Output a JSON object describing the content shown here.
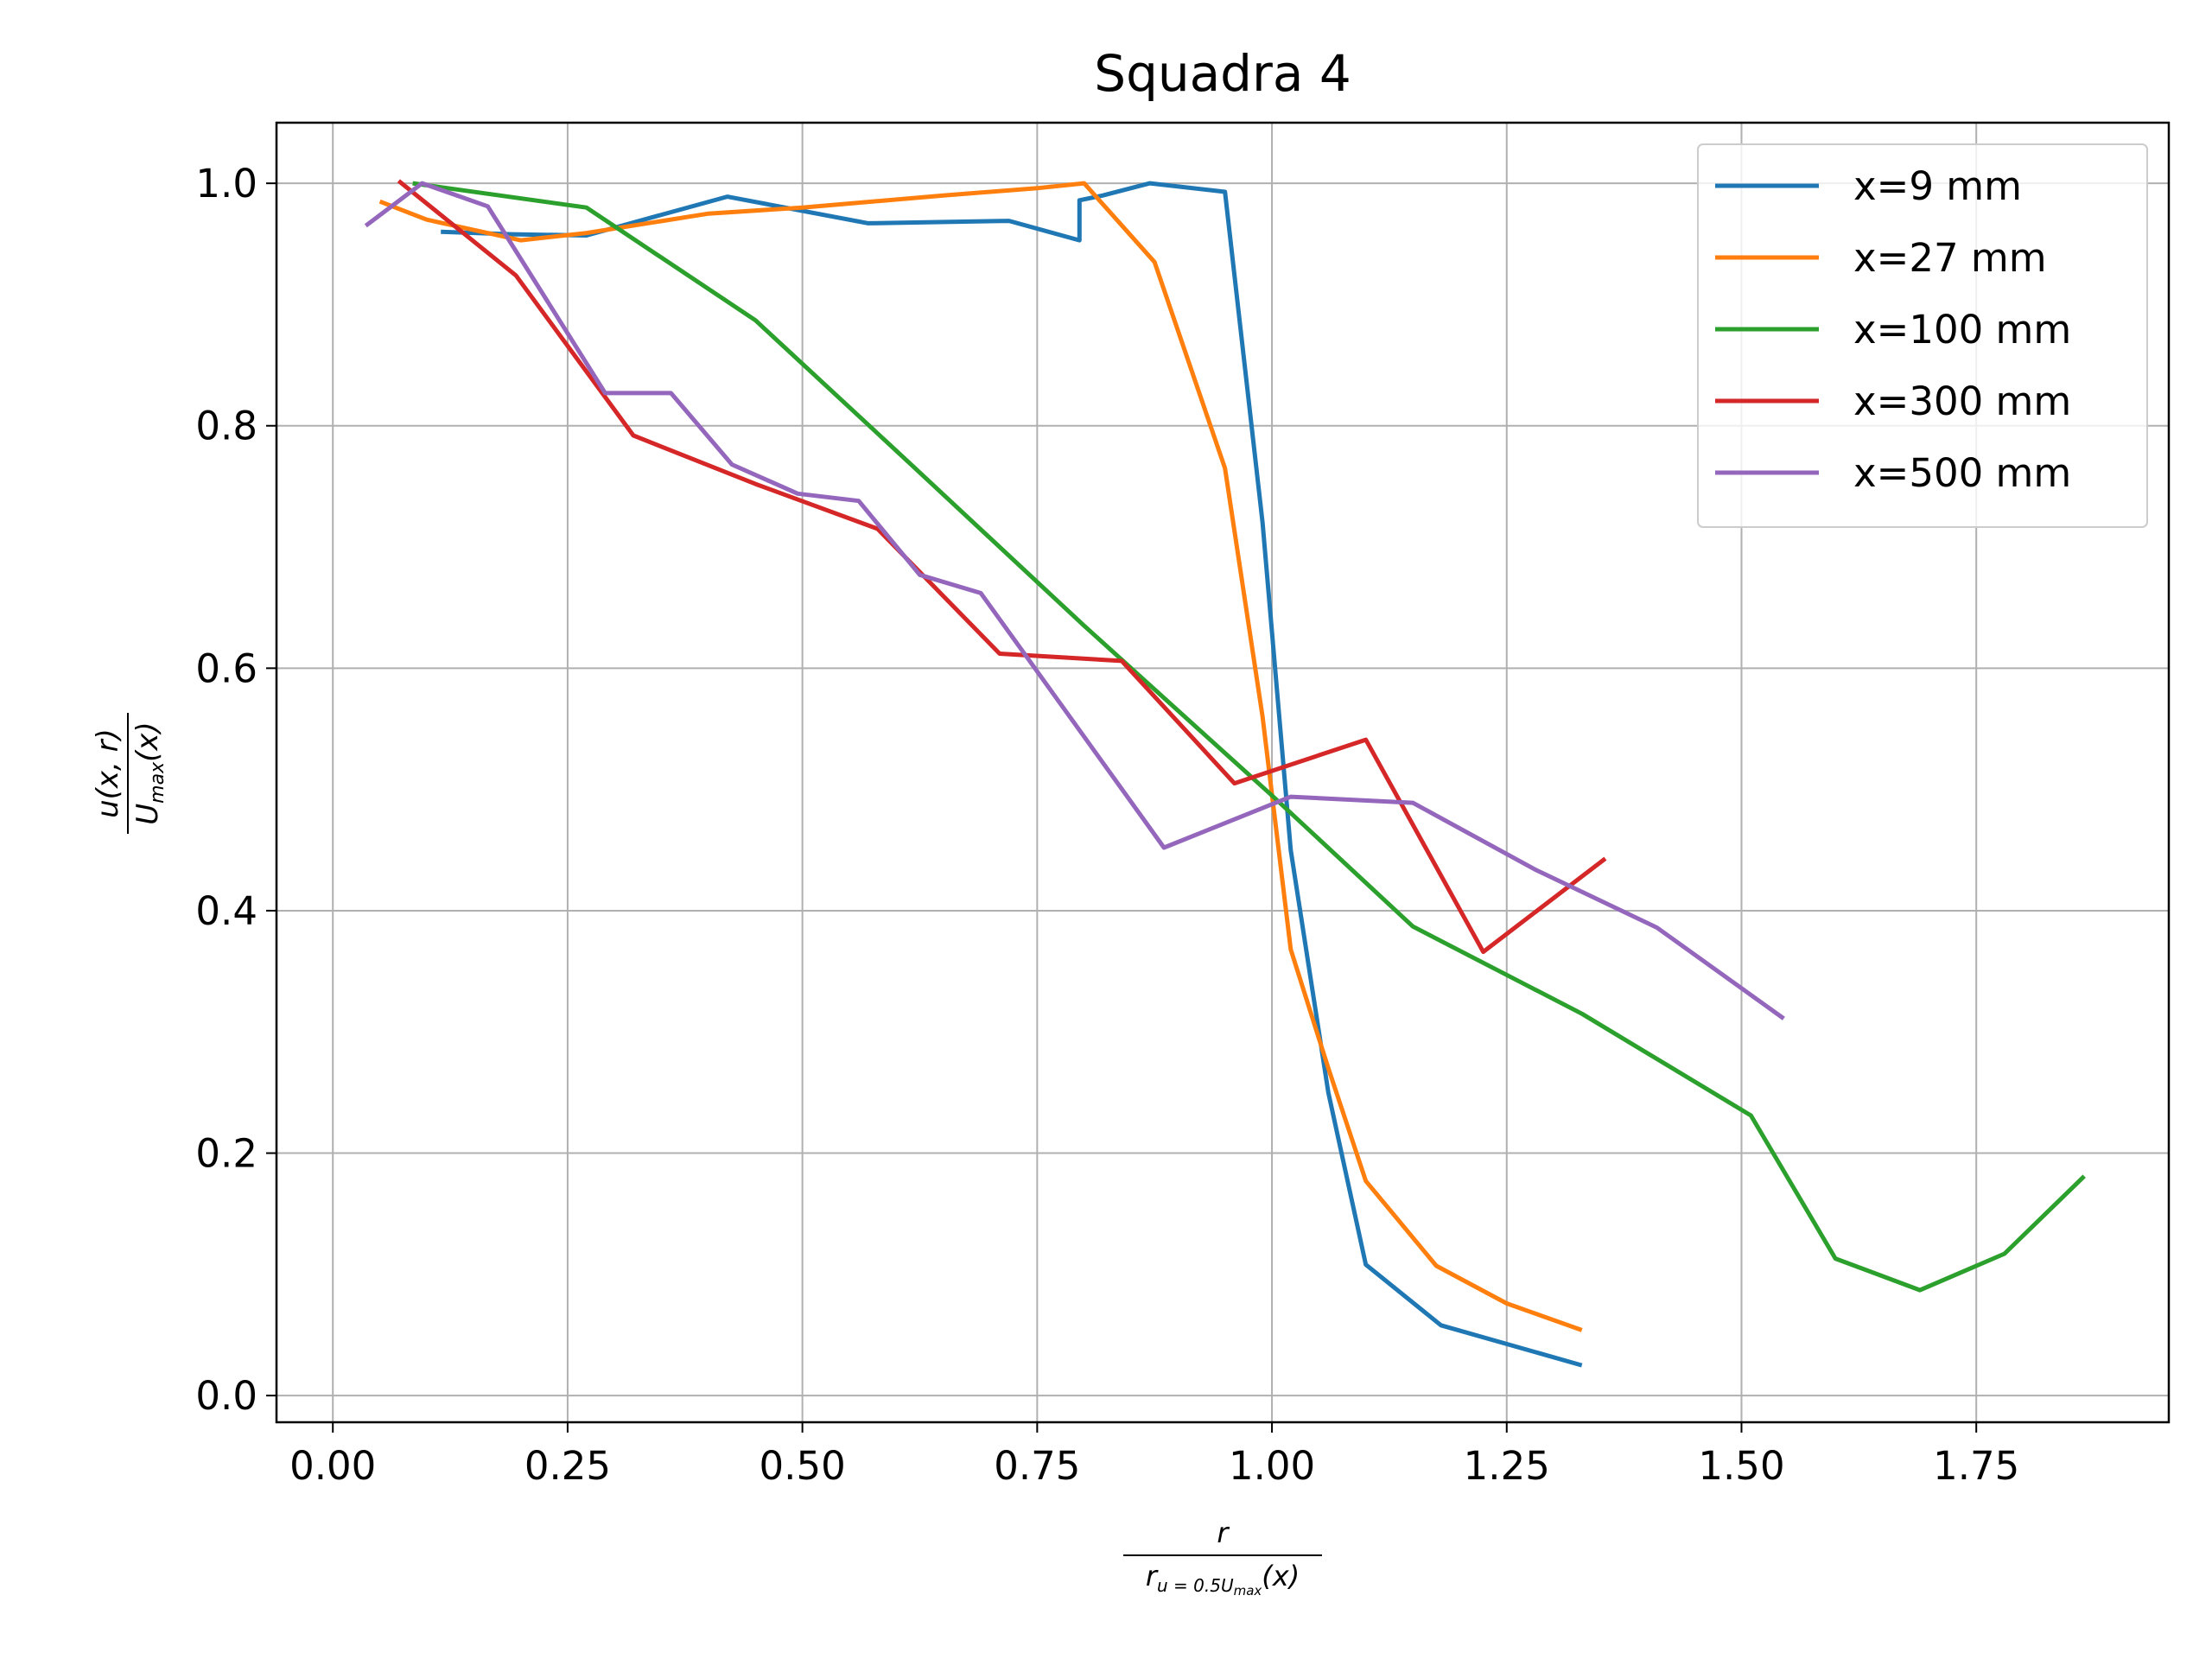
{
  "chart_data": {
    "type": "line",
    "title": "Squadra 4",
    "xlabel": {
      "numerator": "r",
      "denominator_main": "r",
      "denominator_sub": "u = 0.5U",
      "denominator_subsub": "max",
      "denominator_tail": "(x)"
    },
    "ylabel": {
      "numerator": "u(x, r)",
      "denominator_main": "U",
      "denominator_sub": "max",
      "denominator_tail": "(x)"
    },
    "xlim": [
      -0.06,
      1.955
    ],
    "ylim": [
      -0.022,
      1.05
    ],
    "xticks": [
      0.0,
      0.25,
      0.5,
      0.75,
      1.0,
      1.25,
      1.5,
      1.75
    ],
    "xtick_labels": [
      "0.00",
      "0.25",
      "0.50",
      "0.75",
      "1.00",
      "1.25",
      "1.50",
      "1.75"
    ],
    "yticks": [
      0.0,
      0.2,
      0.4,
      0.6,
      0.8,
      1.0
    ],
    "ytick_labels": [
      "0.0",
      "0.2",
      "0.4",
      "0.6",
      "0.8",
      "1.0"
    ],
    "grid": true,
    "legend_position": "top-right",
    "series": [
      {
        "name": "x=9 mm",
        "color": "#1f77b4",
        "x": [
          0.115,
          0.19,
          0.27,
          0.42,
          0.57,
          0.72,
          0.795,
          0.795,
          0.82,
          0.87,
          0.95,
          0.99,
          1.02,
          1.06,
          1.1,
          1.18,
          1.33
        ],
        "y": [
          0.96,
          0.958,
          0.957,
          0.989,
          0.967,
          0.969,
          0.953,
          0.986,
          0.99,
          1.0,
          0.993,
          0.72,
          0.45,
          0.25,
          0.108,
          0.058,
          0.025
        ]
      },
      {
        "name": "x=27 mm",
        "color": "#ff7f0e",
        "x": [
          0.05,
          0.1,
          0.2,
          0.27,
          0.4,
          0.5,
          0.65,
          0.75,
          0.8,
          0.875,
          0.95,
          0.99,
          1.02,
          1.06,
          1.1,
          1.175,
          1.25,
          1.33
        ],
        "y": [
          0.985,
          0.97,
          0.953,
          0.959,
          0.975,
          0.98,
          0.99,
          0.996,
          1.0,
          0.935,
          0.765,
          0.56,
          0.368,
          0.27,
          0.177,
          0.107,
          0.076,
          0.054
        ]
      },
      {
        "name": "x=100 mm",
        "color": "#2ca02c",
        "x": [
          0.085,
          0.27,
          0.45,
          0.62,
          0.8,
          1.0,
          1.15,
          1.33,
          1.51,
          1.6,
          1.69,
          1.78,
          1.865
        ],
        "y": [
          1.0,
          0.98,
          0.887,
          0.765,
          0.635,
          0.495,
          0.387,
          0.315,
          0.231,
          0.113,
          0.087,
          0.117,
          0.181
        ]
      },
      {
        "name": "x=300 mm",
        "color": "#d62728",
        "x": [
          0.07,
          0.195,
          0.32,
          0.45,
          0.58,
          0.71,
          0.84,
          0.96,
          1.1,
          1.225,
          1.355
        ],
        "y": [
          1.002,
          0.924,
          0.792,
          0.752,
          0.715,
          0.612,
          0.606,
          0.505,
          0.541,
          0.366,
          0.443
        ]
      },
      {
        "name": "x=500 mm",
        "color": "#9467bd",
        "x": [
          0.035,
          0.095,
          0.165,
          0.29,
          0.36,
          0.425,
          0.495,
          0.56,
          0.625,
          0.69,
          0.885,
          1.02,
          1.15,
          1.28,
          1.41,
          1.545
        ],
        "y": [
          0.965,
          1.0,
          0.981,
          0.827,
          0.827,
          0.768,
          0.744,
          0.738,
          0.677,
          0.662,
          0.452,
          0.494,
          0.489,
          0.434,
          0.386,
          0.311
        ]
      }
    ]
  }
}
